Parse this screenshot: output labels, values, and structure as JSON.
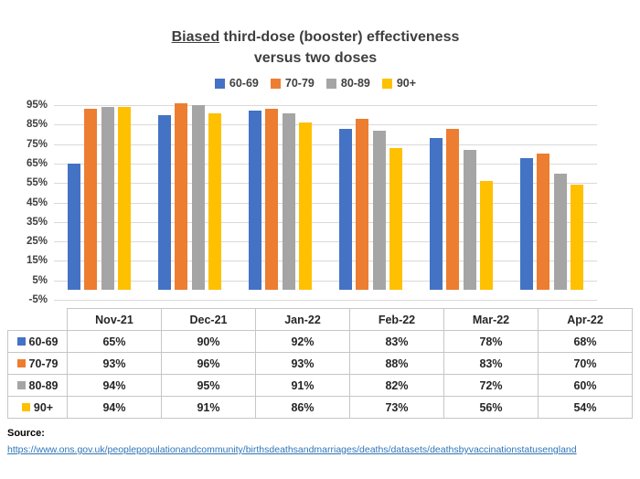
{
  "title": {
    "line1_underlined": "Biased",
    "line1_rest": " third-dose (booster) effectiveness",
    "line2": "versus two doses"
  },
  "chart_data": {
    "type": "bar",
    "title": "Biased third-dose (booster) effectiveness versus two doses",
    "categories": [
      "Nov-21",
      "Dec-21",
      "Jan-22",
      "Feb-22",
      "Mar-22",
      "Apr-22"
    ],
    "series": [
      {
        "name": "60-69",
        "color": "#4472C4",
        "values": [
          65,
          90,
          92,
          83,
          78,
          68
        ]
      },
      {
        "name": "70-79",
        "color": "#ED7D31",
        "values": [
          93,
          96,
          93,
          88,
          83,
          70
        ]
      },
      {
        "name": "80-89",
        "color": "#A5A5A5",
        "values": [
          94,
          95,
          91,
          82,
          72,
          60
        ]
      },
      {
        "name": "90+",
        "color": "#FFC000",
        "values": [
          94,
          91,
          86,
          73,
          56,
          54
        ]
      }
    ],
    "xlabel": "",
    "ylabel": "",
    "ylim": [
      -5,
      95
    ],
    "ytick_step": 10,
    "ytick_labels": [
      "95%",
      "85%",
      "75%",
      "65%",
      "55%",
      "45%",
      "35%",
      "25%",
      "15%",
      "5%",
      "-5%"
    ],
    "value_suffix": "%",
    "grid": true,
    "legend_position": "top",
    "gridline_color": "#D9D9D9",
    "bars_baseline": 0
  },
  "table": {
    "corner": "",
    "columns": [
      "Nov-21",
      "Dec-21",
      "Jan-22",
      "Feb-22",
      "Mar-22",
      "Apr-22"
    ],
    "rows": [
      {
        "label": "60-69",
        "color": "#4472C4",
        "values": [
          "65%",
          "90%",
          "92%",
          "83%",
          "78%",
          "68%"
        ]
      },
      {
        "label": "70-79",
        "color": "#ED7D31",
        "values": [
          "93%",
          "96%",
          "93%",
          "88%",
          "83%",
          "70%"
        ]
      },
      {
        "label": "80-89",
        "color": "#A5A5A5",
        "values": [
          "94%",
          "95%",
          "91%",
          "82%",
          "72%",
          "60%"
        ]
      },
      {
        "label": "90+",
        "color": "#FFC000",
        "values": [
          "94%",
          "91%",
          "86%",
          "73%",
          "56%",
          "54%"
        ]
      }
    ]
  },
  "source": {
    "label": "Source:",
    "url": "https://www.ons.gov.uk/peoplepopulationandcommunity/birthsdeathsandmarriages/deaths/datasets/deathsbyvaccinationstatusengland"
  }
}
